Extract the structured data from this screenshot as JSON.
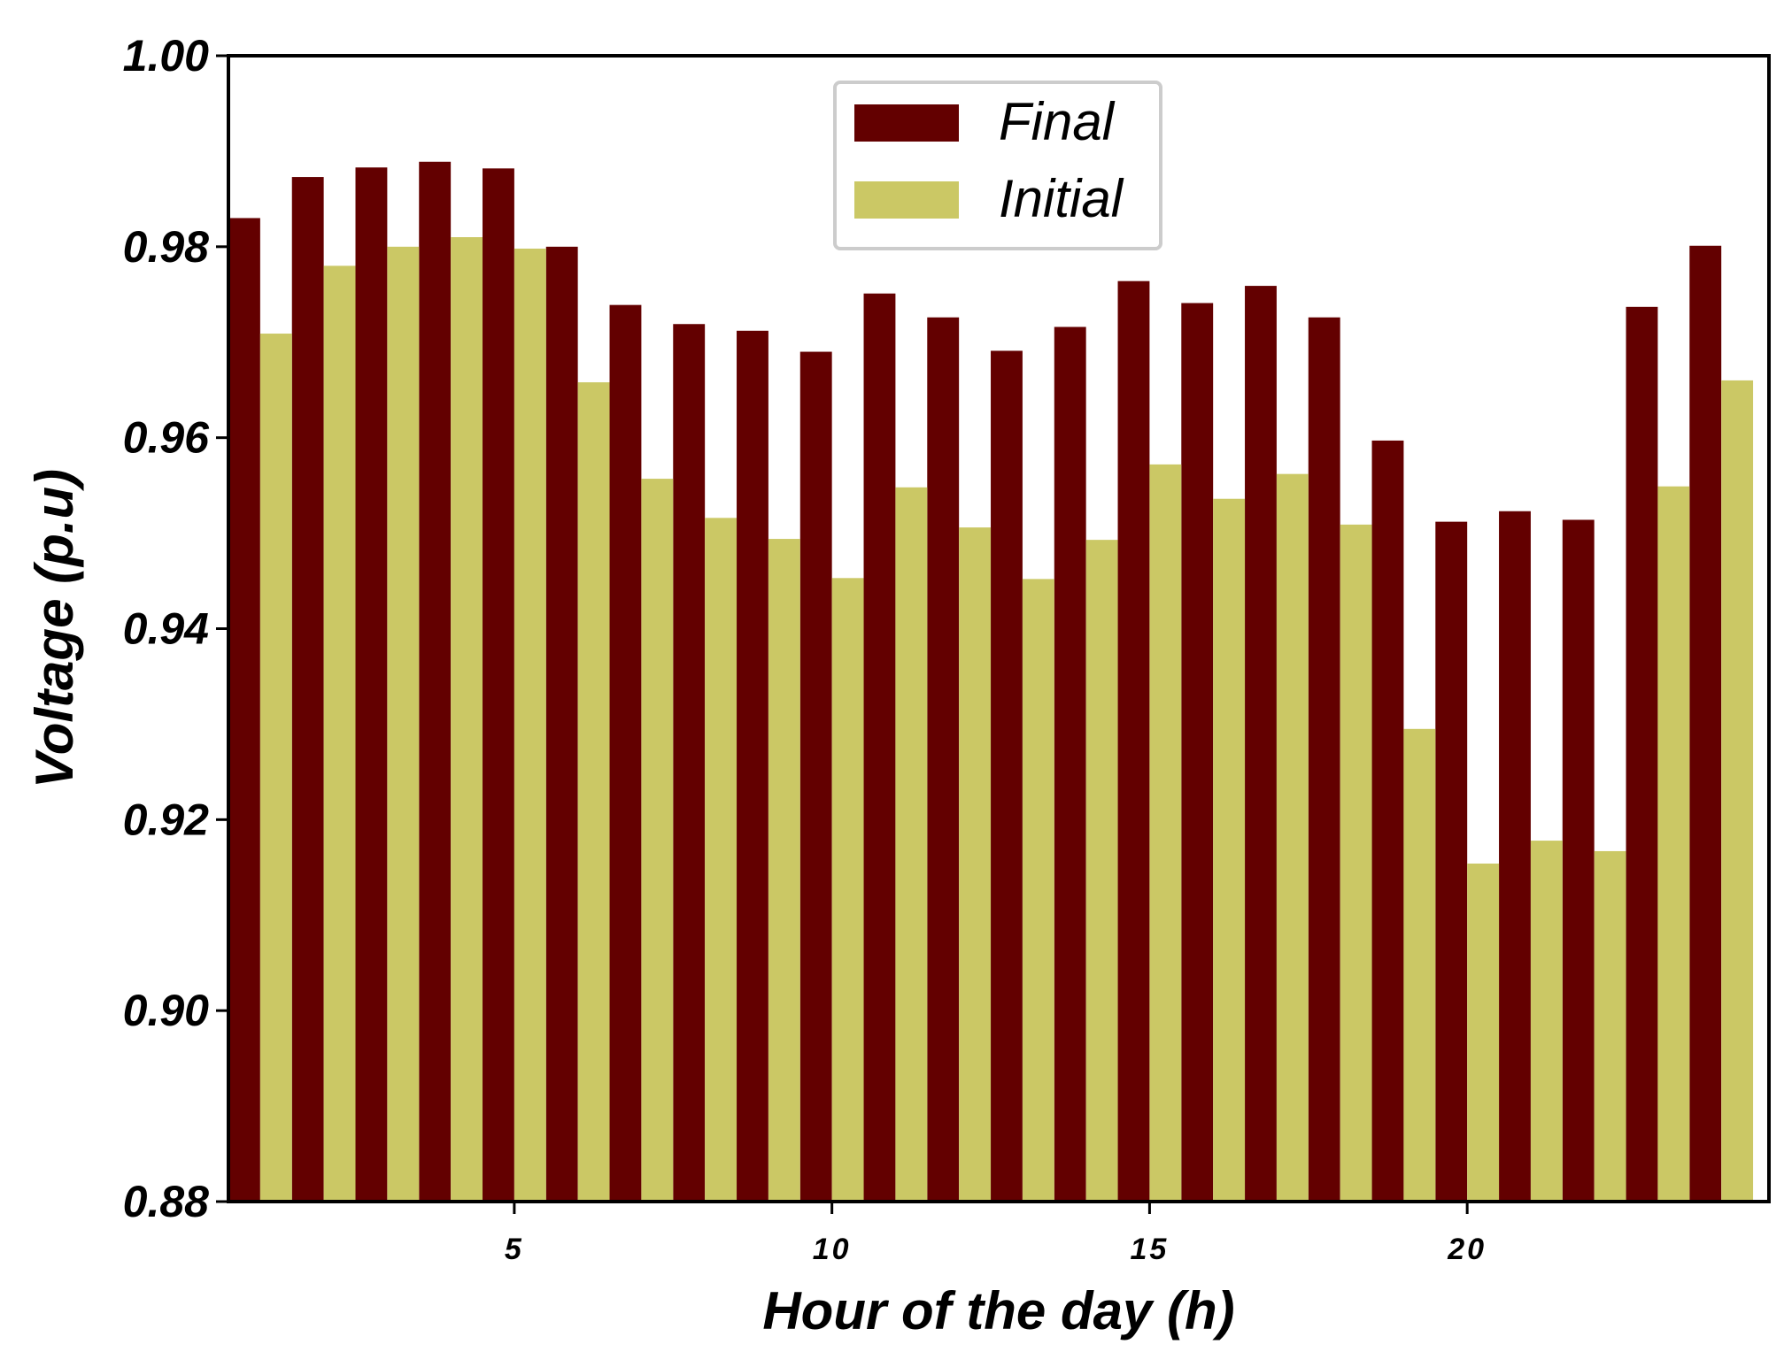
{
  "chart_data": {
    "type": "bar",
    "xlabel": "Hour of the day (h)",
    "ylabel": "Voltage (p.u)",
    "x": [
      1,
      2,
      3,
      4,
      5,
      6,
      7,
      8,
      9,
      10,
      11,
      12,
      13,
      14,
      15,
      16,
      17,
      18,
      19,
      20,
      21,
      22,
      23,
      24
    ],
    "xlim": [
      0.5,
      24.75
    ],
    "ylim": [
      0.88,
      1.0
    ],
    "x_ticks": [
      5,
      10,
      15,
      20
    ],
    "x_tick_labels": [
      "5",
      "10",
      "15",
      "20"
    ],
    "y_ticks": [
      0.88,
      0.9,
      0.92,
      0.94,
      0.96,
      0.98,
      1.0
    ],
    "y_tick_labels": [
      "0.88",
      "0.90",
      "0.92",
      "0.94",
      "0.96",
      "0.98",
      "1.00"
    ],
    "grid": false,
    "legend": {
      "position": "top-center"
    },
    "series": [
      {
        "name": "Final",
        "color": "#630000",
        "values": [
          0.983,
          0.9873,
          0.9883,
          0.9889,
          0.9882,
          0.98,
          0.9739,
          0.9719,
          0.9712,
          0.969,
          0.9751,
          0.9726,
          0.9691,
          0.9716,
          0.9764,
          0.9741,
          0.9759,
          0.9726,
          0.9597,
          0.9512,
          0.9523,
          0.9514,
          0.9737,
          0.9801
        ]
      },
      {
        "name": "Initial",
        "color": "#cbc865",
        "values": [
          0.9709,
          0.978,
          0.98,
          0.981,
          0.9798,
          0.9658,
          0.9557,
          0.9516,
          0.9494,
          0.9453,
          0.9548,
          0.9506,
          0.9452,
          0.9493,
          0.9572,
          0.9536,
          0.9562,
          0.9509,
          0.9295,
          0.9154,
          0.9178,
          0.9167,
          0.9549,
          0.966
        ]
      }
    ]
  }
}
